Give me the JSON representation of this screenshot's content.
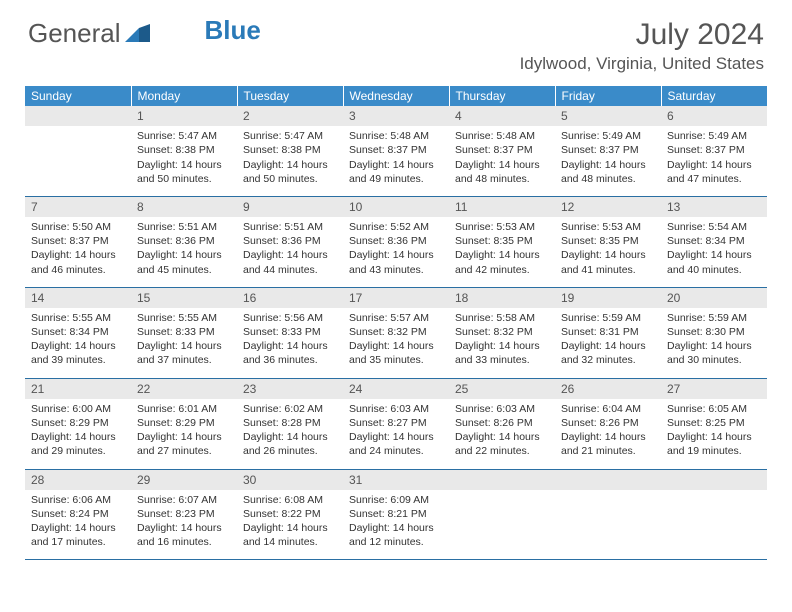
{
  "brand": {
    "text1": "General",
    "text2": "Blue"
  },
  "title": "July 2024",
  "location": "Idylwood, Virginia, United States",
  "colors": {
    "header_bg": "#3a8bc9",
    "header_text": "#ffffff",
    "daynum_bg": "#e9e9e9",
    "cell_border": "#2a6fa3",
    "body_text": "#333333",
    "title_text": "#555555"
  },
  "weekdays": [
    "Sunday",
    "Monday",
    "Tuesday",
    "Wednesday",
    "Thursday",
    "Friday",
    "Saturday"
  ],
  "weeks": [
    {
      "nums": [
        "",
        "1",
        "2",
        "3",
        "4",
        "5",
        "6"
      ],
      "cells": [
        null,
        {
          "sunrise": "Sunrise: 5:47 AM",
          "sunset": "Sunset: 8:38 PM",
          "day1": "Daylight: 14 hours",
          "day2": "and 50 minutes."
        },
        {
          "sunrise": "Sunrise: 5:47 AM",
          "sunset": "Sunset: 8:38 PM",
          "day1": "Daylight: 14 hours",
          "day2": "and 50 minutes."
        },
        {
          "sunrise": "Sunrise: 5:48 AM",
          "sunset": "Sunset: 8:37 PM",
          "day1": "Daylight: 14 hours",
          "day2": "and 49 minutes."
        },
        {
          "sunrise": "Sunrise: 5:48 AM",
          "sunset": "Sunset: 8:37 PM",
          "day1": "Daylight: 14 hours",
          "day2": "and 48 minutes."
        },
        {
          "sunrise": "Sunrise: 5:49 AM",
          "sunset": "Sunset: 8:37 PM",
          "day1": "Daylight: 14 hours",
          "day2": "and 48 minutes."
        },
        {
          "sunrise": "Sunrise: 5:49 AM",
          "sunset": "Sunset: 8:37 PM",
          "day1": "Daylight: 14 hours",
          "day2": "and 47 minutes."
        }
      ]
    },
    {
      "nums": [
        "7",
        "8",
        "9",
        "10",
        "11",
        "12",
        "13"
      ],
      "cells": [
        {
          "sunrise": "Sunrise: 5:50 AM",
          "sunset": "Sunset: 8:37 PM",
          "day1": "Daylight: 14 hours",
          "day2": "and 46 minutes."
        },
        {
          "sunrise": "Sunrise: 5:51 AM",
          "sunset": "Sunset: 8:36 PM",
          "day1": "Daylight: 14 hours",
          "day2": "and 45 minutes."
        },
        {
          "sunrise": "Sunrise: 5:51 AM",
          "sunset": "Sunset: 8:36 PM",
          "day1": "Daylight: 14 hours",
          "day2": "and 44 minutes."
        },
        {
          "sunrise": "Sunrise: 5:52 AM",
          "sunset": "Sunset: 8:36 PM",
          "day1": "Daylight: 14 hours",
          "day2": "and 43 minutes."
        },
        {
          "sunrise": "Sunrise: 5:53 AM",
          "sunset": "Sunset: 8:35 PM",
          "day1": "Daylight: 14 hours",
          "day2": "and 42 minutes."
        },
        {
          "sunrise": "Sunrise: 5:53 AM",
          "sunset": "Sunset: 8:35 PM",
          "day1": "Daylight: 14 hours",
          "day2": "and 41 minutes."
        },
        {
          "sunrise": "Sunrise: 5:54 AM",
          "sunset": "Sunset: 8:34 PM",
          "day1": "Daylight: 14 hours",
          "day2": "and 40 minutes."
        }
      ]
    },
    {
      "nums": [
        "14",
        "15",
        "16",
        "17",
        "18",
        "19",
        "20"
      ],
      "cells": [
        {
          "sunrise": "Sunrise: 5:55 AM",
          "sunset": "Sunset: 8:34 PM",
          "day1": "Daylight: 14 hours",
          "day2": "and 39 minutes."
        },
        {
          "sunrise": "Sunrise: 5:55 AM",
          "sunset": "Sunset: 8:33 PM",
          "day1": "Daylight: 14 hours",
          "day2": "and 37 minutes."
        },
        {
          "sunrise": "Sunrise: 5:56 AM",
          "sunset": "Sunset: 8:33 PM",
          "day1": "Daylight: 14 hours",
          "day2": "and 36 minutes."
        },
        {
          "sunrise": "Sunrise: 5:57 AM",
          "sunset": "Sunset: 8:32 PM",
          "day1": "Daylight: 14 hours",
          "day2": "and 35 minutes."
        },
        {
          "sunrise": "Sunrise: 5:58 AM",
          "sunset": "Sunset: 8:32 PM",
          "day1": "Daylight: 14 hours",
          "day2": "and 33 minutes."
        },
        {
          "sunrise": "Sunrise: 5:59 AM",
          "sunset": "Sunset: 8:31 PM",
          "day1": "Daylight: 14 hours",
          "day2": "and 32 minutes."
        },
        {
          "sunrise": "Sunrise: 5:59 AM",
          "sunset": "Sunset: 8:30 PM",
          "day1": "Daylight: 14 hours",
          "day2": "and 30 minutes."
        }
      ]
    },
    {
      "nums": [
        "21",
        "22",
        "23",
        "24",
        "25",
        "26",
        "27"
      ],
      "cells": [
        {
          "sunrise": "Sunrise: 6:00 AM",
          "sunset": "Sunset: 8:29 PM",
          "day1": "Daylight: 14 hours",
          "day2": "and 29 minutes."
        },
        {
          "sunrise": "Sunrise: 6:01 AM",
          "sunset": "Sunset: 8:29 PM",
          "day1": "Daylight: 14 hours",
          "day2": "and 27 minutes."
        },
        {
          "sunrise": "Sunrise: 6:02 AM",
          "sunset": "Sunset: 8:28 PM",
          "day1": "Daylight: 14 hours",
          "day2": "and 26 minutes."
        },
        {
          "sunrise": "Sunrise: 6:03 AM",
          "sunset": "Sunset: 8:27 PM",
          "day1": "Daylight: 14 hours",
          "day2": "and 24 minutes."
        },
        {
          "sunrise": "Sunrise: 6:03 AM",
          "sunset": "Sunset: 8:26 PM",
          "day1": "Daylight: 14 hours",
          "day2": "and 22 minutes."
        },
        {
          "sunrise": "Sunrise: 6:04 AM",
          "sunset": "Sunset: 8:26 PM",
          "day1": "Daylight: 14 hours",
          "day2": "and 21 minutes."
        },
        {
          "sunrise": "Sunrise: 6:05 AM",
          "sunset": "Sunset: 8:25 PM",
          "day1": "Daylight: 14 hours",
          "day2": "and 19 minutes."
        }
      ]
    },
    {
      "nums": [
        "28",
        "29",
        "30",
        "31",
        "",
        "",
        ""
      ],
      "cells": [
        {
          "sunrise": "Sunrise: 6:06 AM",
          "sunset": "Sunset: 8:24 PM",
          "day1": "Daylight: 14 hours",
          "day2": "and 17 minutes."
        },
        {
          "sunrise": "Sunrise: 6:07 AM",
          "sunset": "Sunset: 8:23 PM",
          "day1": "Daylight: 14 hours",
          "day2": "and 16 minutes."
        },
        {
          "sunrise": "Sunrise: 6:08 AM",
          "sunset": "Sunset: 8:22 PM",
          "day1": "Daylight: 14 hours",
          "day2": "and 14 minutes."
        },
        {
          "sunrise": "Sunrise: 6:09 AM",
          "sunset": "Sunset: 8:21 PM",
          "day1": "Daylight: 14 hours",
          "day2": "and 12 minutes."
        },
        null,
        null,
        null
      ]
    }
  ]
}
